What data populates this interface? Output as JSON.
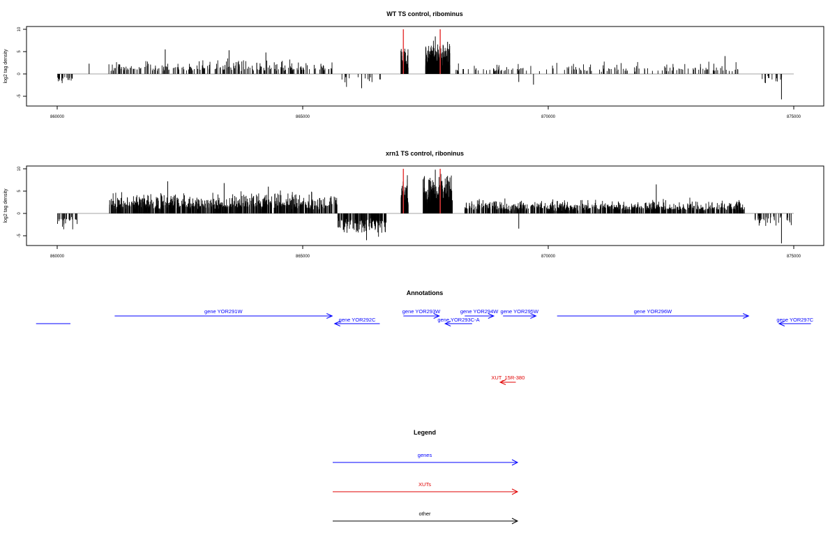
{
  "chart_data": [
    {
      "type": "bar",
      "title": "WT TS control, ribominus",
      "xlabel": "",
      "ylabel": "log2 tag density",
      "xlim": [
        860000,
        875000
      ],
      "ylim": [
        -7,
        11
      ],
      "yticks": [
        "10",
        "5",
        "0",
        "-5"
      ],
      "xticks": [
        "860000",
        "865000",
        "870000",
        "875000"
      ],
      "highlight_color": "#e63b3b",
      "bar_color": "#000000",
      "regions": [
        {
          "x0": 860000,
          "x1": 860350,
          "mean": -1.5,
          "density": 0.06
        },
        {
          "x0": 861050,
          "x1": 863100,
          "mean": 1.8,
          "density": 0.05
        },
        {
          "x0": 863100,
          "x1": 865600,
          "mean": 2.0,
          "density": 0.05
        },
        {
          "x0": 865650,
          "x1": 866600,
          "mean": -1.8,
          "density": 0.015
        },
        {
          "x0": 867000,
          "x1": 867150,
          "mean": 4.0,
          "density": 0.35
        },
        {
          "x0": 867500,
          "x1": 868000,
          "mean": 4.5,
          "density": 0.45
        },
        {
          "x0": 868100,
          "x1": 869700,
          "mean": 1.5,
          "density": 0.03
        },
        {
          "x0": 869700,
          "x1": 873900,
          "mean": 1.6,
          "density": 0.025
        },
        {
          "x0": 874300,
          "x1": 874950,
          "mean": -1.5,
          "density": 0.02
        }
      ],
      "peaks": [
        {
          "x": 860650,
          "y": 2.3
        },
        {
          "x": 862200,
          "y": 5.5
        },
        {
          "x": 863500,
          "y": 5.3
        },
        {
          "x": 864250,
          "y": 4.8
        },
        {
          "x": 866200,
          "y": -3.2
        },
        {
          "x": 867000,
          "y": 5.2
        },
        {
          "x": 867700,
          "y": 8.4
        },
        {
          "x": 867950,
          "y": 7.2
        },
        {
          "x": 869400,
          "y": -1.8
        },
        {
          "x": 869700,
          "y": -2.4
        },
        {
          "x": 873600,
          "y": 4.0
        },
        {
          "x": 874750,
          "y": -5.7
        }
      ],
      "highlights": [
        {
          "x": 867050,
          "y": 10
        },
        {
          "x": 867800,
          "y": 10
        }
      ]
    },
    {
      "type": "bar",
      "title": "xrn1 TS control, riboninus",
      "xlabel": "",
      "ylabel": "log2 tag density",
      "xlim": [
        860000,
        875000
      ],
      "ylim": [
        -7,
        11
      ],
      "yticks": [
        "10",
        "5",
        "0",
        "-5"
      ],
      "xticks": [
        "860000",
        "865000",
        "870000",
        "875000"
      ],
      "highlight_color": "#e63b3b",
      "bar_color": "#000000",
      "regions": [
        {
          "x0": 860000,
          "x1": 860450,
          "mean": -2.2,
          "density": 0.06
        },
        {
          "x0": 861050,
          "x1": 865700,
          "mean": 2.8,
          "density": 0.16
        },
        {
          "x0": 865700,
          "x1": 866700,
          "mean": -3.0,
          "density": 0.18
        },
        {
          "x0": 867000,
          "x1": 867150,
          "mean": 4.5,
          "density": 0.5
        },
        {
          "x0": 867450,
          "x1": 868050,
          "mean": 5.0,
          "density": 0.5
        },
        {
          "x0": 868300,
          "x1": 869000,
          "mean": 2.0,
          "density": 0.15
        },
        {
          "x0": 869000,
          "x1": 874000,
          "mean": 1.8,
          "density": 0.14
        },
        {
          "x0": 874200,
          "x1": 874950,
          "mean": -1.8,
          "density": 0.05
        }
      ],
      "peaks": [
        {
          "x": 862250,
          "y": 7.2
        },
        {
          "x": 863400,
          "y": 6.8
        },
        {
          "x": 864300,
          "y": 6.0
        },
        {
          "x": 866300,
          "y": -6.0
        },
        {
          "x": 867700,
          "y": 9.8
        },
        {
          "x": 867950,
          "y": 8.4
        },
        {
          "x": 869400,
          "y": -3.4
        },
        {
          "x": 872200,
          "y": 6.5
        },
        {
          "x": 874750,
          "y": -6.7
        }
      ],
      "highlights": [
        {
          "x": 867050,
          "y": 10
        },
        {
          "x": 867800,
          "y": 10
        }
      ]
    }
  ],
  "annotations": {
    "title": "Annotations",
    "genes_color": "#0000ff",
    "xuts_color": "#e00000",
    "other_color": "#000000",
    "features": [
      {
        "label": "",
        "kind": "genes",
        "start": 859570,
        "end": 860270,
        "strand": "none",
        "row": 1
      },
      {
        "label": "gene YOR291W",
        "kind": "genes",
        "start": 861170,
        "end": 865600,
        "strand": "+",
        "row": 0
      },
      {
        "label": "gene YOR292C",
        "kind": "genes",
        "start": 865650,
        "end": 866570,
        "strand": "-",
        "row": 1
      },
      {
        "label": "gene YOR293W",
        "kind": "genes",
        "start": 867050,
        "end": 867780,
        "strand": "+",
        "row": 0
      },
      {
        "label": "gene YOR293C-A",
        "kind": "genes",
        "start": 867900,
        "end": 868450,
        "strand": "-",
        "row": 1
      },
      {
        "label": "gene YOR294W",
        "kind": "genes",
        "start": 868300,
        "end": 868890,
        "strand": "+",
        "row": 0
      },
      {
        "label": "gene YOR295W",
        "kind": "genes",
        "start": 869080,
        "end": 869750,
        "strand": "+",
        "row": 0
      },
      {
        "label": "gene YOR296W",
        "kind": "genes",
        "start": 870180,
        "end": 874080,
        "strand": "+",
        "row": 0
      },
      {
        "label": "gene YOR297C",
        "kind": "genes",
        "start": 874700,
        "end": 875350,
        "strand": "-",
        "row": 1
      },
      {
        "label": "XUT_15R-380",
        "kind": "xuts",
        "start": 869020,
        "end": 869340,
        "strand": "-",
        "row": 2
      }
    ]
  },
  "legend": {
    "title": "Legend",
    "items": [
      {
        "label": "genes",
        "color": "#0000ff"
      },
      {
        "label": "XUTs",
        "color": "#e00000"
      },
      {
        "label": "other",
        "color": "#000000"
      }
    ]
  }
}
